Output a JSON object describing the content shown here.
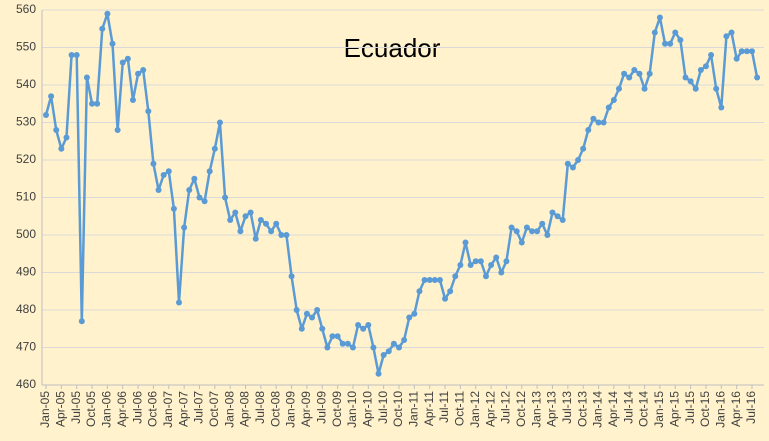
{
  "chart_data": {
    "type": "line",
    "title": "Ecuador",
    "categories": [
      "Jan-05",
      null,
      null,
      "Apr-05",
      null,
      null,
      "Jul-05",
      null,
      null,
      "Oct-05",
      null,
      null,
      "Jan-06",
      null,
      null,
      "Apr-06",
      null,
      null,
      "Jul-06",
      null,
      null,
      "Oct-06",
      null,
      null,
      "Jan-07",
      null,
      null,
      "Apr-07",
      null,
      null,
      "Jul-07",
      null,
      null,
      "Oct-07",
      null,
      null,
      "Jan-08",
      null,
      null,
      "Apr-08",
      null,
      null,
      "Jul-08",
      null,
      null,
      "Oct-08",
      null,
      null,
      "Jan-09",
      null,
      null,
      "Apr-09",
      null,
      null,
      "Jul-09",
      null,
      null,
      "Oct-09",
      null,
      null,
      "Jan-10",
      null,
      null,
      "Apr-10",
      null,
      null,
      "Jul-10",
      null,
      null,
      "Oct-10",
      null,
      null,
      "Jan-11",
      null,
      null,
      "Apr-11",
      null,
      null,
      "Jul-11",
      null,
      null,
      "Oct-11",
      null,
      null,
      "Jan-12",
      null,
      null,
      "Apr-12",
      null,
      null,
      "Jul-12",
      null,
      null,
      "Oct-12",
      null,
      null,
      "Jan-13",
      null,
      null,
      "Apr-13",
      null,
      null,
      "Jul-13",
      null,
      null,
      "Oct-13",
      null,
      null,
      "Jan-14",
      null,
      null,
      "Apr-14",
      null,
      null,
      "Jul-14",
      null,
      null,
      "Oct-14",
      null,
      null,
      "Jan-15",
      null,
      null,
      "Apr-15",
      null,
      null,
      "Jul-15",
      null,
      null,
      "Oct-15",
      null,
      null,
      "Jan-16",
      null,
      null,
      "Apr-16",
      null,
      null,
      "Jul-16",
      null
    ],
    "values": [
      532,
      537,
      528,
      523,
      526,
      548,
      548,
      477,
      542,
      535,
      535,
      555,
      559,
      551,
      528,
      546,
      547,
      536,
      543,
      544,
      533,
      519,
      512,
      516,
      517,
      507,
      482,
      502,
      512,
      515,
      510,
      509,
      517,
      523,
      530,
      510,
      504,
      506,
      501,
      505,
      506,
      499,
      504,
      503,
      501,
      503,
      500,
      500,
      489,
      480,
      475,
      479,
      478,
      480,
      475,
      470,
      473,
      473,
      471,
      471,
      470,
      476,
      475,
      476,
      470,
      463,
      468,
      469,
      471,
      470,
      472,
      478,
      479,
      485,
      488,
      488,
      488,
      488,
      483,
      485,
      489,
      492,
      498,
      492,
      493,
      493,
      489,
      492,
      494,
      490,
      493,
      502,
      501,
      498,
      502,
      501,
      501,
      503,
      500,
      506,
      505,
      504,
      519,
      518,
      520,
      523,
      528,
      531,
      530,
      530,
      534,
      536,
      539,
      543,
      542,
      544,
      543,
      539,
      543,
      554,
      558,
      551,
      551,
      554,
      552,
      542,
      541,
      539,
      544,
      545,
      548,
      539,
      534,
      553,
      554,
      547,
      549,
      549,
      549,
      542
    ],
    "color": "#5b9bd5",
    "ylim": [
      460,
      560
    ],
    "yticks": [
      460,
      470,
      480,
      490,
      500,
      510,
      520,
      530,
      540,
      550,
      560
    ],
    "grid": true
  }
}
